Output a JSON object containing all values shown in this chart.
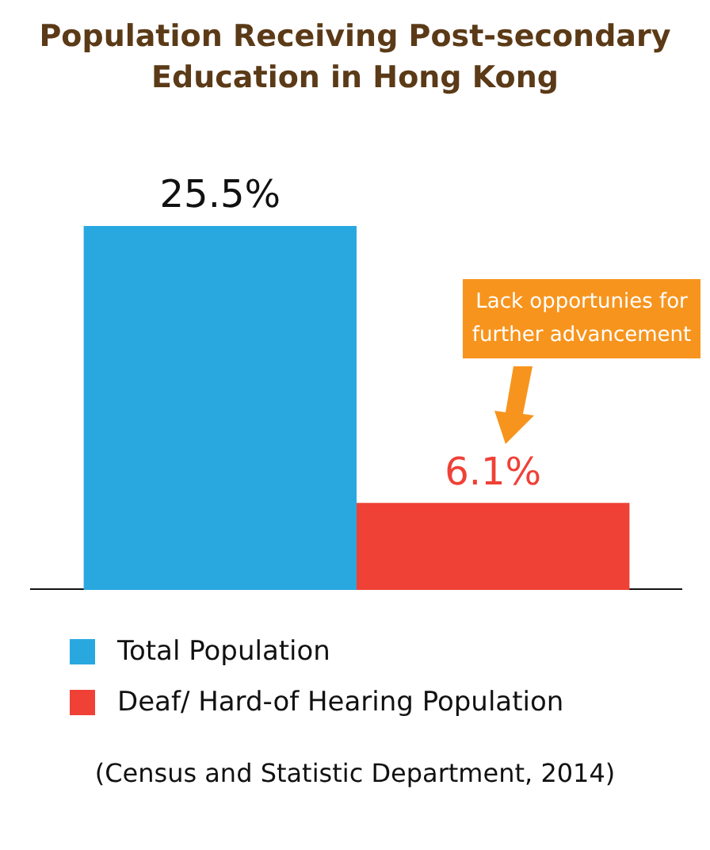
{
  "chart_data": {
    "type": "bar",
    "title": "Population Receiving Post-secondary Education in Hong Kong",
    "categories": [
      null
    ],
    "series": [
      {
        "name": "Total Population",
        "color": "#29a8e0",
        "values": [
          25.5
        ],
        "value_labels": [
          "25.5%"
        ]
      },
      {
        "name": "Deaf/ Hard-of Hearing Population",
        "color": "#ef4136",
        "values": [
          6.1
        ],
        "value_labels": [
          "6.1%"
        ]
      }
    ],
    "tick_labels": false,
    "grid": false,
    "legend": "bottom",
    "annotations": [
      "Lack opportunies for further advancement",
      "(Census and Statistic Department, 2014)"
    ]
  }
}
